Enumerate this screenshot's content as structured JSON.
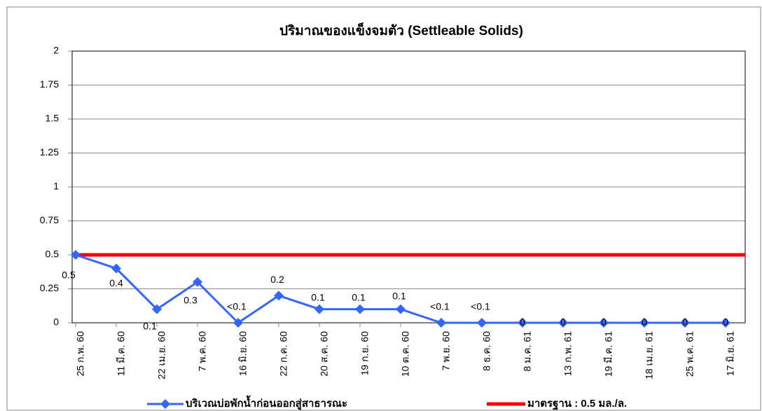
{
  "chart_data": {
    "type": "line",
    "title": "ปริมาณของแข็งจมตัว (Settleable Solids)",
    "categories": [
      "25 ก.พ. 60",
      "11 มี.ค. 60",
      "22 เม.ย. 60",
      "7 พ.ค. 60",
      "16 มิ.ย. 60",
      "22 ก.ค. 60",
      "20 ส.ค. 60",
      "19 ก.ย. 60",
      "10 ต.ค. 60",
      "7 พ.ย. 60",
      "8 ธ.ค. 60",
      "8 ม.ค. 61",
      "13 ก.พ. 61",
      "19 มี.ค. 61",
      "18 เม.ย. 61",
      "25 พ.ค. 61",
      "17 มิ.ย. 61"
    ],
    "series": [
      {
        "name": "บริเวณบ่อพักน้ำก่อนออกสู่สาธารณะ",
        "color": "#3366ff",
        "values": [
          0.5,
          0.4,
          0.1,
          0.3,
          0,
          0.2,
          0.1,
          0.1,
          0.1,
          0,
          0,
          0,
          0,
          0,
          0,
          0,
          0
        ],
        "value_labels": [
          "0.5",
          "0.4",
          "0.1",
          "0.3",
          "<0.1",
          "0.2",
          "0.1",
          "0.1",
          "0.1",
          "<0.1",
          "<0.1",
          "0",
          "0",
          "0",
          "0",
          "0",
          "0"
        ]
      }
    ],
    "reference_lines": [
      {
        "name": "มาตรฐาน : 0.5 มล./ล.",
        "value": 0.5,
        "color": "#ff0000"
      }
    ],
    "ylim": [
      0,
      2
    ],
    "yticks": [
      0,
      0.25,
      0.5,
      0.75,
      1,
      1.25,
      1.5,
      1.75,
      2
    ],
    "grid": true
  }
}
